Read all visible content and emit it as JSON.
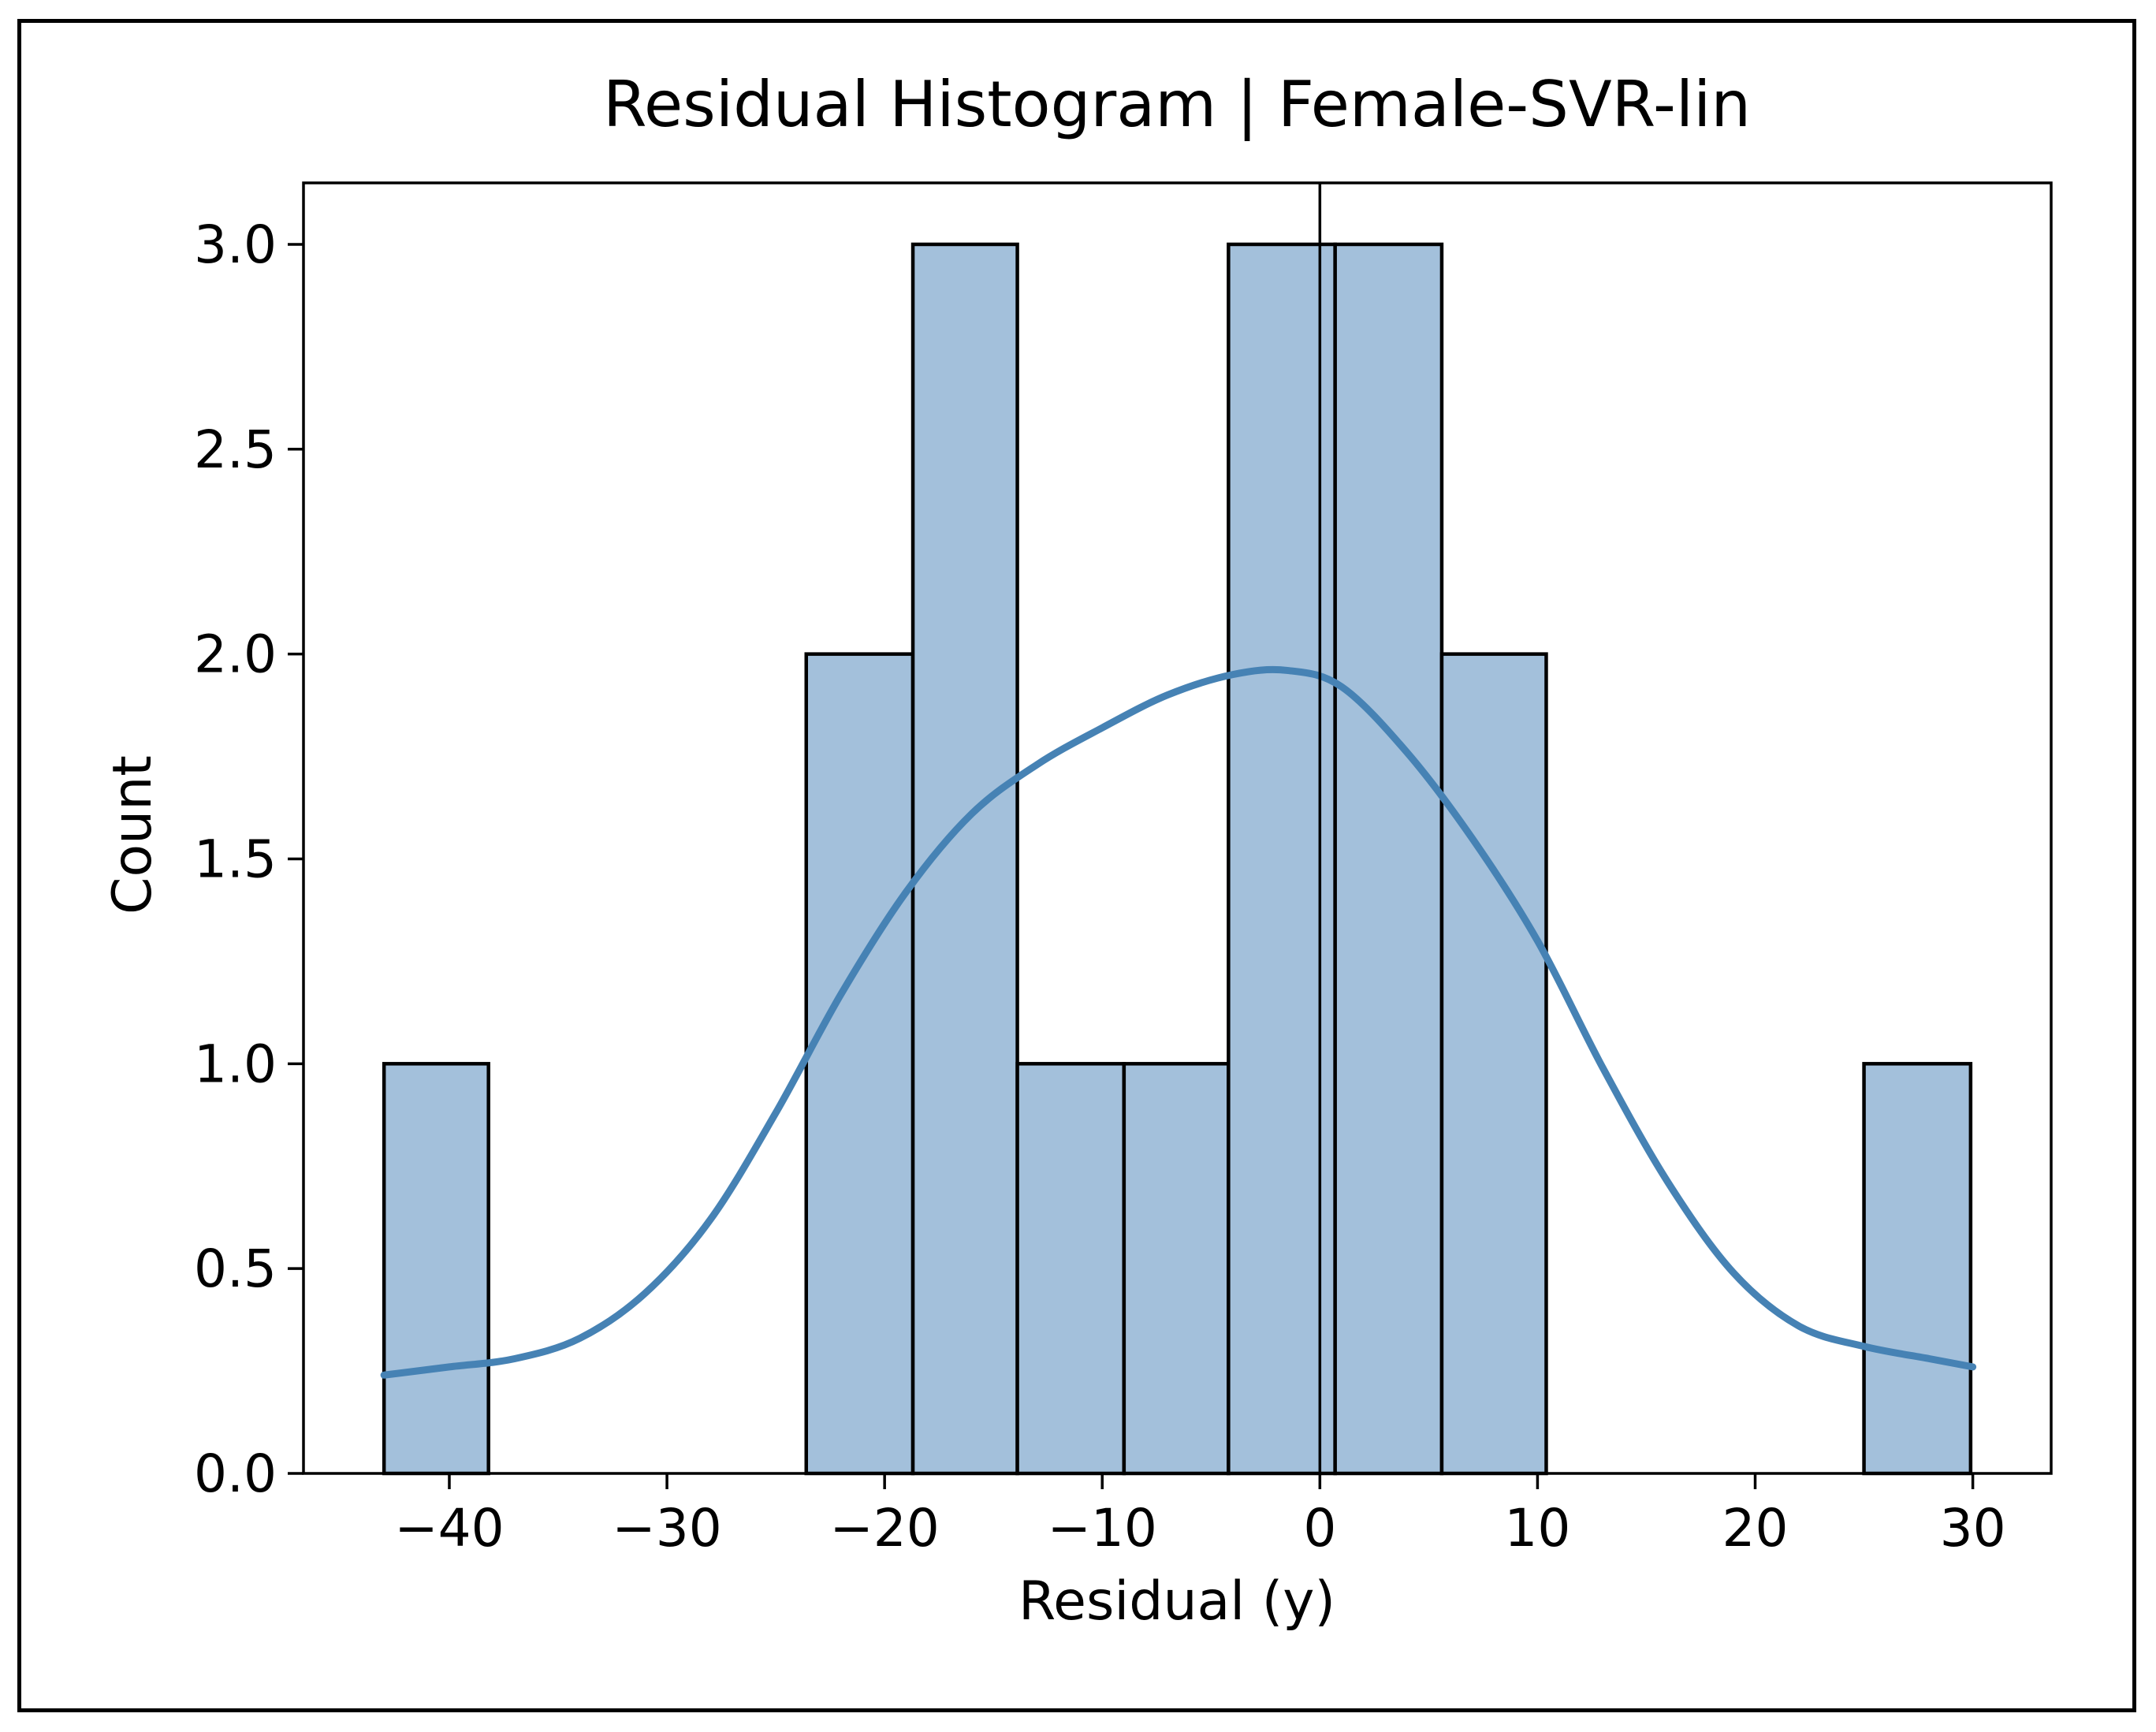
{
  "chart_data": {
    "type": "bar",
    "title": "Residual Histogram | Female-SVR-lin",
    "xlabel": "Residual (y)",
    "ylabel": "Count",
    "xlim": [
      -46.7,
      33.6
    ],
    "ylim": [
      0,
      3.15
    ],
    "xticks": [
      -40,
      -30,
      -20,
      -10,
      0,
      10,
      20,
      30
    ],
    "xtick_labels": [
      "−40",
      "−30",
      "−20",
      "−10",
      "0",
      "10",
      "20",
      "30"
    ],
    "yticks": [
      0.0,
      0.5,
      1.0,
      1.5,
      2.0,
      2.5,
      3.0
    ],
    "ytick_labels": [
      "0.0",
      "0.5",
      "1.0",
      "1.5",
      "2.0",
      "2.5",
      "3.0"
    ],
    "bins": [
      {
        "x0": -43.0,
        "x1": -38.2,
        "count": 1
      },
      {
        "x0": -38.2,
        "x1": -33.3,
        "count": 0
      },
      {
        "x0": -33.3,
        "x1": -28.5,
        "count": 0
      },
      {
        "x0": -28.5,
        "x1": -23.6,
        "count": 0
      },
      {
        "x0": -23.6,
        "x1": -18.7,
        "count": 2
      },
      {
        "x0": -18.7,
        "x1": -13.9,
        "count": 3
      },
      {
        "x0": -13.9,
        "x1": -9.0,
        "count": 1
      },
      {
        "x0": -9.0,
        "x1": -4.2,
        "count": 1
      },
      {
        "x0": -4.2,
        "x1": 0.7,
        "count": 3
      },
      {
        "x0": 0.7,
        "x1": 5.6,
        "count": 3
      },
      {
        "x0": 5.6,
        "x1": 10.4,
        "count": 2
      },
      {
        "x0": 10.4,
        "x1": 15.3,
        "count": 0
      },
      {
        "x0": 15.3,
        "x1": 20.1,
        "count": 0
      },
      {
        "x0": 20.1,
        "x1": 25.0,
        "count": 0
      },
      {
        "x0": 25.0,
        "x1": 29.9,
        "count": 1
      }
    ],
    "kde": {
      "x": [
        -43,
        -40,
        -37,
        -34,
        -31,
        -28,
        -25,
        -22,
        -19,
        -16,
        -13,
        -10,
        -7,
        -4,
        -1.5,
        1,
        4,
        7,
        10,
        13,
        16,
        19,
        22,
        25,
        28,
        30
      ],
      "y": [
        0.24,
        0.26,
        0.28,
        0.33,
        0.44,
        0.62,
        0.88,
        1.17,
        1.42,
        1.61,
        1.73,
        1.82,
        1.9,
        1.95,
        1.96,
        1.92,
        1.76,
        1.55,
        1.3,
        0.99,
        0.71,
        0.49,
        0.36,
        0.31,
        0.28,
        0.26
      ]
    },
    "vline_x": 0,
    "colors": {
      "bar_fill": "#a3c0db",
      "bar_edge": "#000000",
      "kde_line": "#4682b4",
      "vline": "#000000"
    }
  }
}
